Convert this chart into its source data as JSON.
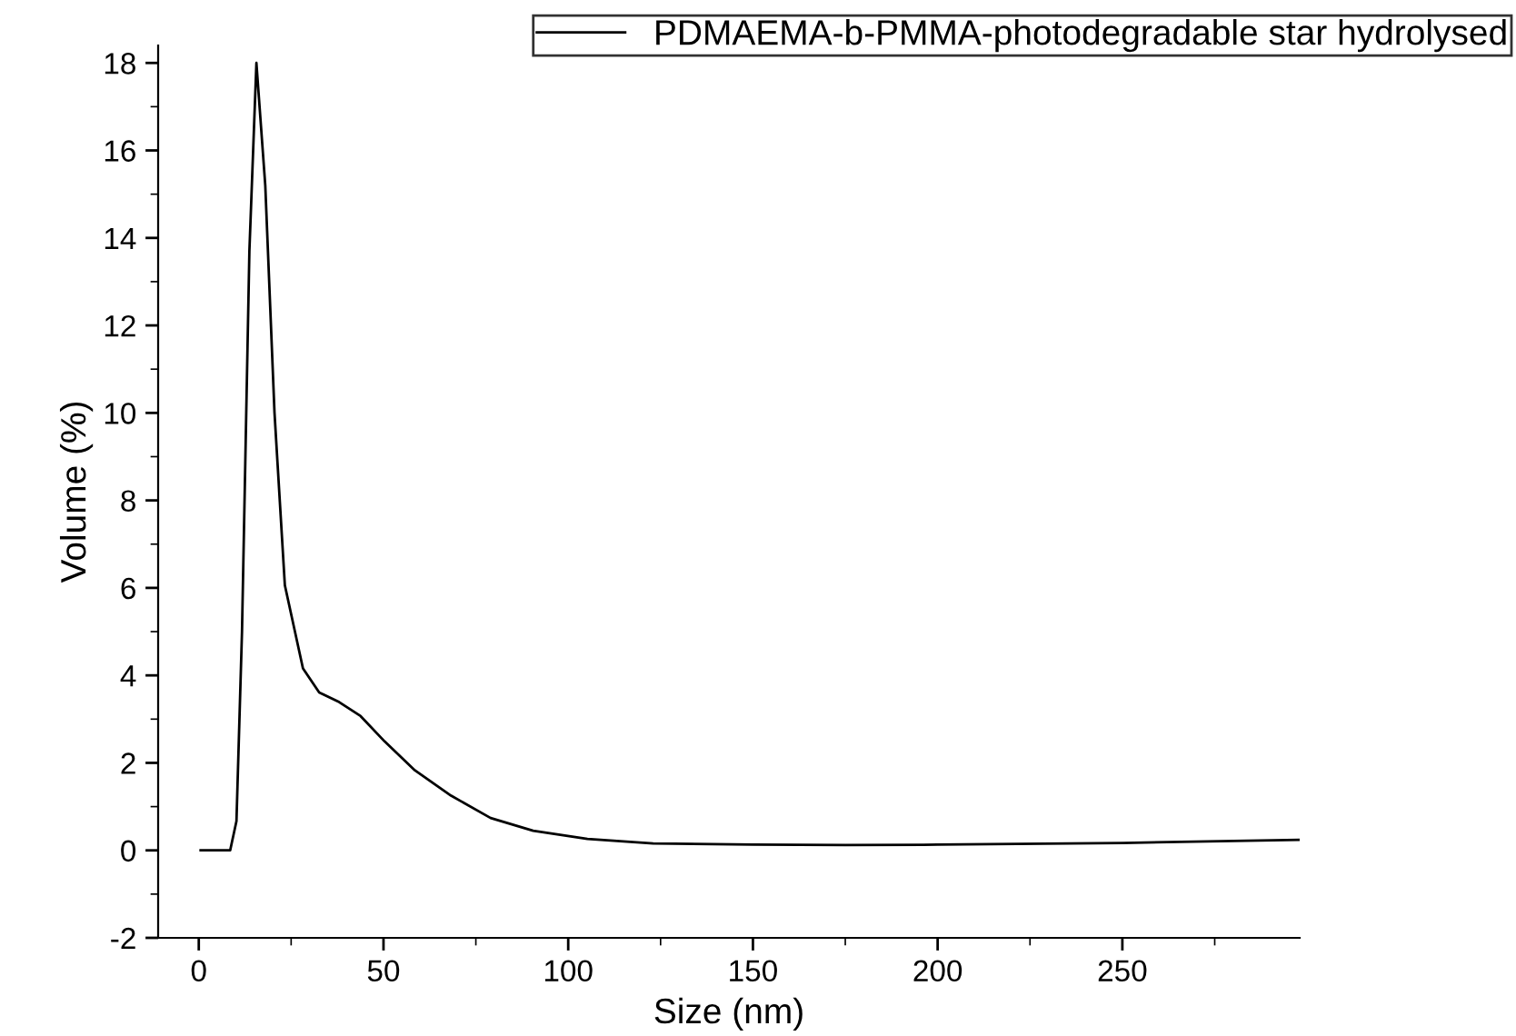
{
  "chart_data": {
    "type": "line",
    "xlabel": "Size (nm)",
    "ylabel": "Volume (%)",
    "xlim": [
      -11,
      298
    ],
    "ylim": [
      -2,
      18.4
    ],
    "xticks": [
      0,
      50,
      100,
      150,
      200,
      250
    ],
    "yticks": [
      -2,
      0,
      2,
      4,
      6,
      8,
      10,
      12,
      14,
      16,
      18
    ],
    "grid": false,
    "legend": "top right",
    "marker": "none",
    "line_style": "solid",
    "series": [
      {
        "name": "PDMAEMA-b-PMMA-photodegradable star hydrolysed",
        "color": "#000000",
        "x": [
          0.5,
          8.5,
          10.2,
          11.7,
          13.7,
          15.6,
          18,
          20.5,
          23.3,
          28.2,
          32.6,
          38,
          43.8,
          50.3,
          58.5,
          68.3,
          79,
          90.5,
          105.2,
          123,
          150,
          175,
          200,
          250,
          298
        ],
        "values": [
          0,
          0,
          0.67,
          5,
          13.7,
          18,
          15.2,
          10,
          6.06,
          4.16,
          3.61,
          3.39,
          3.07,
          2.49,
          1.83,
          1.25,
          0.74,
          0.45,
          0.26,
          0.16,
          0.13,
          0.12,
          0.13,
          0.17,
          0.24
        ]
      }
    ]
  }
}
